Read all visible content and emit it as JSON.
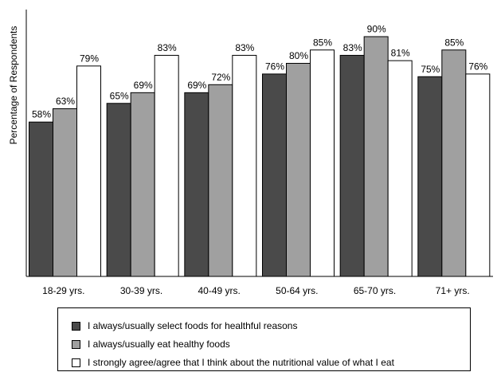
{
  "chart_data": {
    "type": "bar",
    "ylabel": "Percentage of Respondents",
    "ylim": [
      0,
      100
    ],
    "categories": [
      "18-29 yrs.",
      "30-39 yrs.",
      "40-49 yrs.",
      "50-64 yrs.",
      "65-70 yrs.",
      "71+ yrs."
    ],
    "series": [
      {
        "name": "I always/usually select foods for healthful reasons",
        "values": [
          58,
          65,
          69,
          76,
          83,
          75
        ],
        "labels": [
          "58%",
          "65%",
          "69%",
          "76%",
          "83%",
          "75%"
        ],
        "color": "#4a4a4a"
      },
      {
        "name": "I always/usually eat healthy foods",
        "values": [
          63,
          69,
          72,
          80,
          90,
          85
        ],
        "labels": [
          "63%",
          "69%",
          "72%",
          "80%",
          "90%",
          "85%"
        ],
        "color": "#a0a0a0"
      },
      {
        "name": "I strongly agree/agree that I think about the nutritional value of what I eat",
        "values": [
          79,
          83,
          83,
          85,
          81,
          76
        ],
        "labels": [
          "79%",
          "83%",
          "83%",
          "85%",
          "81%",
          "76%"
        ],
        "color": "#ffffff"
      }
    ],
    "grid": false,
    "legend_position": "bottom"
  }
}
